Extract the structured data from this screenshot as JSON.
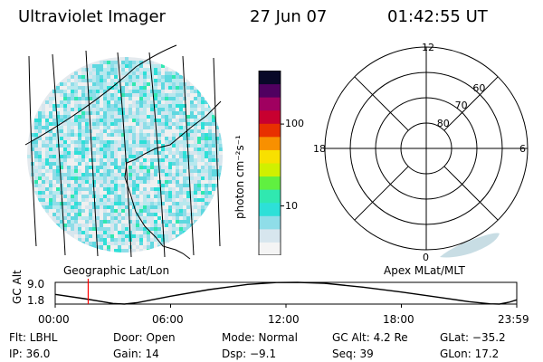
{
  "header": {
    "title": "Ultraviolet Imager",
    "date": "27 Jun 07",
    "time": "01:42:55 UT"
  },
  "colorbar": {
    "label": "photon cm⁻²s⁻¹",
    "ticks": [
      "100",
      "10"
    ],
    "tick_values": [
      100,
      10
    ],
    "range": [
      2.5,
      450
    ],
    "scale": "log",
    "colors": [
      "#f4f4f4",
      "#d7e6ee",
      "#8fdde8",
      "#2de0d8",
      "#30e8b0",
      "#60f040",
      "#d0f000",
      "#f8e000",
      "#f89000",
      "#e83000",
      "#c80030",
      "#a00060",
      "#500060",
      "#080828"
    ]
  },
  "left_panel": {
    "caption": "Geographic Lat/Lon"
  },
  "right_panel": {
    "caption": "Apex MLat/MLT",
    "mlt_labels": {
      "top": "12",
      "left": "18",
      "right": "6",
      "bottom": "0"
    },
    "lat_labels": [
      "80",
      "70",
      "60"
    ],
    "lat_values": [
      80,
      70,
      60
    ]
  },
  "altitude_plot": {
    "ylabel": "GC Alt",
    "yticks": [
      "9.0",
      "1.8"
    ],
    "ytick_values": [
      9.0,
      1.8
    ],
    "xticks": [
      "00:00",
      "06:00",
      "12:00",
      "18:00",
      "23:59"
    ],
    "xrange_hours": [
      0,
      24
    ],
    "current_time_hours": 1.7153,
    "marker_color": "#ff0000"
  },
  "footer": {
    "flt": "Flt: LBHL",
    "door": "Door: Open",
    "mode": "Mode: Normal",
    "gc_alt": "GC Alt: 4.2 Re",
    "glat": "GLat: −35.2",
    "ip": "IP: 36.0",
    "gain": "Gain: 14",
    "dsp": "Dsp:   −9.1",
    "seq": "Seq: 39",
    "glon": "GLon:  17.2"
  }
}
